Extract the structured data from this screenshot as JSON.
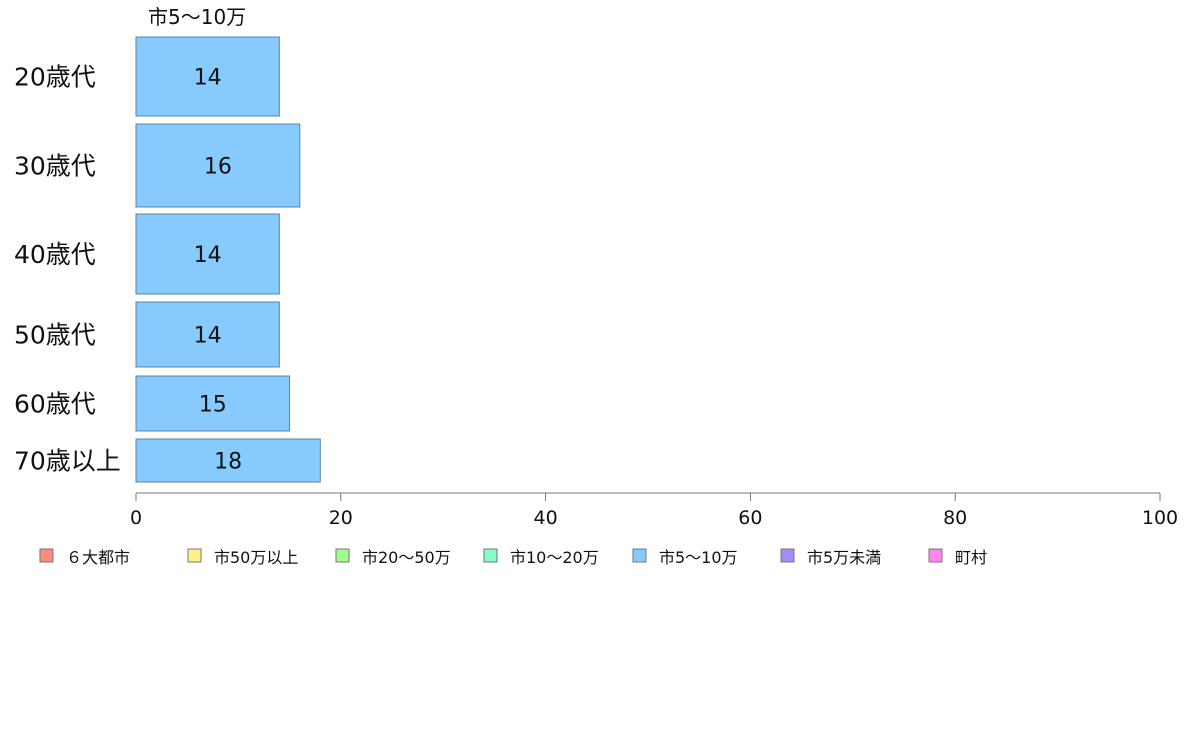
{
  "chart_data": {
    "type": "bar",
    "orientation": "horizontal",
    "series_label": "市5〜10万",
    "categories": [
      "20歳代",
      "30歳代",
      "40歳代",
      "50歳代",
      "60歳代",
      "70歳以上"
    ],
    "series": [
      {
        "name": "市5〜10万",
        "values": [
          14,
          16,
          14,
          14,
          15,
          18
        ],
        "color": "#87cafd"
      }
    ],
    "bar_border_color": "#5a84a8",
    "xlim": [
      0,
      100
    ],
    "xticks": [
      0,
      20,
      40,
      60,
      80,
      100
    ],
    "legend": {
      "position": "bottom",
      "items": [
        {
          "label": "６大都市",
          "color": "#ff8a82"
        },
        {
          "label": "市50万以上",
          "color": "#fff08a"
        },
        {
          "label": "市20〜50万",
          "color": "#a2fb8a"
        },
        {
          "label": "市10〜20万",
          "color": "#86fcc9"
        },
        {
          "label": "市5〜10万",
          "color": "#87cafd"
        },
        {
          "label": "市5万未満",
          "color": "#a88af8"
        },
        {
          "label": "町村",
          "color": "#fa86f0"
        }
      ]
    },
    "grid": false
  }
}
